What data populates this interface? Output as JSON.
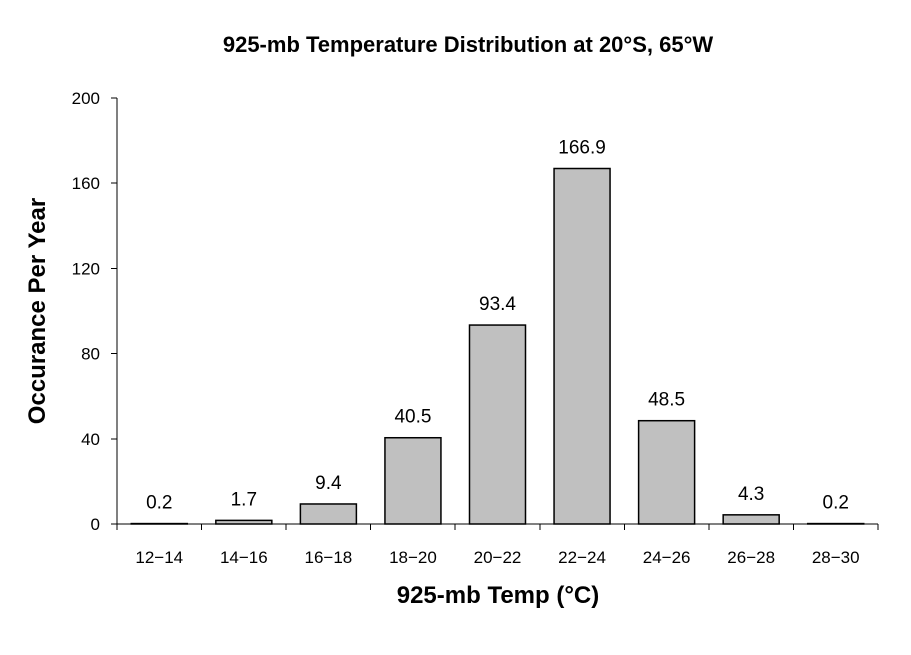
{
  "chart_data": {
    "type": "bar",
    "title": "925-mb Temperature Distribution at 20°S, 65°W",
    "xlabel": "925-mb Temp (°C)",
    "ylabel": "Occurance Per Year",
    "categories": [
      "12−14",
      "14−16",
      "16−18",
      "18−20",
      "20−22",
      "22−24",
      "24−26",
      "26−28",
      "28−30"
    ],
    "values": [
      0.2,
      1.7,
      9.4,
      40.5,
      93.4,
      166.9,
      48.5,
      4.3,
      0.2
    ],
    "data_labels": [
      "0.2",
      "1.7",
      "9.4",
      "40.5",
      "93.4",
      "166.9",
      "48.5",
      "4.3",
      "0.2"
    ],
    "ylim": [
      0,
      200
    ],
    "yticks": [
      0,
      40,
      80,
      120,
      160,
      200
    ],
    "grid": false,
    "legend": "none",
    "colors": {
      "bar_fill": "#c0c0c0",
      "bar_stroke": "#000000",
      "axis": "#000000",
      "background": "#ffffff"
    }
  }
}
